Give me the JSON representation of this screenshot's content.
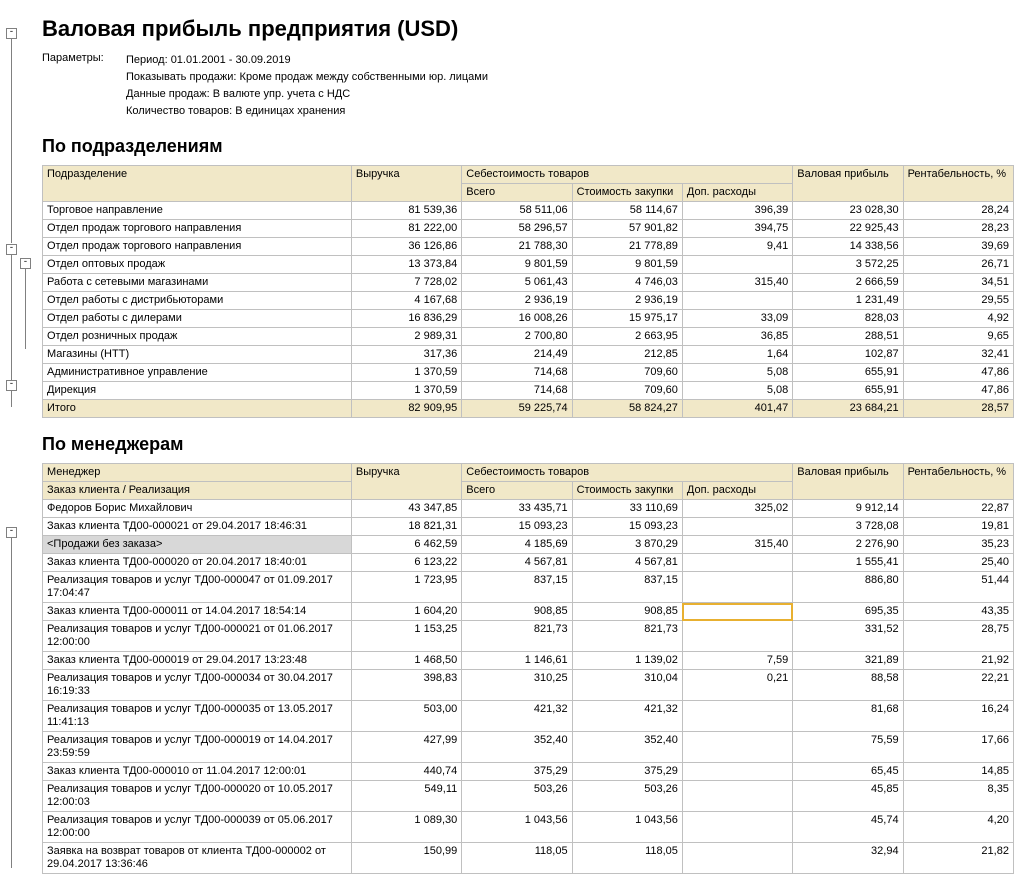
{
  "title": "Валовая прибыль предприятия (USD)",
  "params_label": "Параметры:",
  "params": [
    "Период: 01.01.2001 - 30.09.2019",
    "Показывать продажи: Кроме продаж между собственными юр. лицами",
    "Данные продаж: В валюте упр. учета с НДС",
    "Количество товаров: В единицах хранения"
  ],
  "section1_title": "По подразделениям",
  "section2_title": "По менеджерам",
  "headers": {
    "name1": "Подразделение",
    "name2a": "Менеджер",
    "name2b": "Заказ клиента / Реализация",
    "revenue": "Выручка",
    "cost_group": "Себестоимость товаров",
    "cost_total": "Всего",
    "cost_purchase": "Стоимость закупки",
    "cost_extra": "Доп. расходы",
    "gross": "Валовая прибыль",
    "profit": "Рентабельность, %"
  },
  "divisions": [
    {
      "lvl": 0,
      "name": "Торговое направление",
      "rev": "81 539,36",
      "ct": "58 511,06",
      "cp": "58 114,67",
      "ce": "396,39",
      "gp": "23 028,30",
      "pr": "28,24"
    },
    {
      "lvl": 1,
      "name": "Отдел продаж торгового направления",
      "rev": "81 222,00",
      "ct": "58 296,57",
      "cp": "57 901,82",
      "ce": "394,75",
      "gp": "22 925,43",
      "pr": "28,23"
    },
    {
      "lvl": 2,
      "name": "Отдел продаж торгового направления",
      "rev": "36 126,86",
      "ct": "21 788,30",
      "cp": "21 778,89",
      "ce": "9,41",
      "gp": "14 338,56",
      "pr": "39,69"
    },
    {
      "lvl": 2,
      "name": "Отдел оптовых продаж",
      "rev": "13 373,84",
      "ct": "9 801,59",
      "cp": "9 801,59",
      "ce": "",
      "gp": "3 572,25",
      "pr": "26,71"
    },
    {
      "lvl": 2,
      "name": "Работа с сетевыми магазинами",
      "rev": "7 728,02",
      "ct": "5 061,43",
      "cp": "4 746,03",
      "ce": "315,40",
      "gp": "2 666,59",
      "pr": "34,51"
    },
    {
      "lvl": 2,
      "name": "Отдел работы с дистрибьюторами",
      "rev": "4 167,68",
      "ct": "2 936,19",
      "cp": "2 936,19",
      "ce": "",
      "gp": "1 231,49",
      "pr": "29,55"
    },
    {
      "lvl": 2,
      "name": "Отдел работы с дилерами",
      "rev": "16 836,29",
      "ct": "16 008,26",
      "cp": "15 975,17",
      "ce": "33,09",
      "gp": "828,03",
      "pr": "4,92"
    },
    {
      "lvl": 2,
      "name": "Отдел розничных продаж",
      "rev": "2 989,31",
      "ct": "2 700,80",
      "cp": "2 663,95",
      "ce": "36,85",
      "gp": "288,51",
      "pr": "9,65"
    },
    {
      "lvl": 1,
      "name": "Магазины (НТТ)",
      "rev": "317,36",
      "ct": "214,49",
      "cp": "212,85",
      "ce": "1,64",
      "gp": "102,87",
      "pr": "32,41"
    },
    {
      "lvl": 0,
      "name": "Административное управление",
      "rev": "1 370,59",
      "ct": "714,68",
      "cp": "709,60",
      "ce": "5,08",
      "gp": "655,91",
      "pr": "47,86"
    },
    {
      "lvl": 1,
      "name": "Дирекция",
      "rev": "1 370,59",
      "ct": "714,68",
      "cp": "709,60",
      "ce": "5,08",
      "gp": "655,91",
      "pr": "47,86"
    }
  ],
  "divisions_total": {
    "name": "Итого",
    "rev": "82 909,95",
    "ct": "59 225,74",
    "cp": "58 824,27",
    "ce": "401,47",
    "gp": "23 684,21",
    "pr": "28,57"
  },
  "managers": [
    {
      "lvl": 0,
      "name": "Федоров Борис Михайлович",
      "rev": "43 347,85",
      "ct": "33 435,71",
      "cp": "33 110,69",
      "ce": "325,02",
      "gp": "9 912,14",
      "pr": "22,87"
    },
    {
      "lvl": 1,
      "name": "Заказ клиента ТД00-000021 от 29.04.2017 18:46:31",
      "rev": "18 821,31",
      "ct": "15 093,23",
      "cp": "15 093,23",
      "ce": "",
      "gp": "3 728,08",
      "pr": "19,81"
    },
    {
      "lvl": 1,
      "name": "<Продажи без заказа>",
      "rev": "6 462,59",
      "ct": "4 185,69",
      "cp": "3 870,29",
      "ce": "315,40",
      "gp": "2 276,90",
      "pr": "35,23",
      "hl": true
    },
    {
      "lvl": 1,
      "name": "Заказ клиента ТД00-000020 от 20.04.2017 18:40:01",
      "rev": "6 123,22",
      "ct": "4 567,81",
      "cp": "4 567,81",
      "ce": "",
      "gp": "1 555,41",
      "pr": "25,40"
    },
    {
      "lvl": 1,
      "name": "Реализация товаров и услуг ТД00-000047 от 01.09.2017 17:04:47",
      "rev": "1 723,95",
      "ct": "837,15",
      "cp": "837,15",
      "ce": "",
      "gp": "886,80",
      "pr": "51,44"
    },
    {
      "lvl": 1,
      "name": "Заказ клиента ТД00-000011 от 14.04.2017 18:54:14",
      "rev": "1 604,20",
      "ct": "908,85",
      "cp": "908,85",
      "ce": "",
      "gp": "695,35",
      "pr": "43,35",
      "sel": true
    },
    {
      "lvl": 1,
      "name": "Реализация товаров и услуг ТД00-000021 от 01.06.2017 12:00:00",
      "rev": "1 153,25",
      "ct": "821,73",
      "cp": "821,73",
      "ce": "",
      "gp": "331,52",
      "pr": "28,75"
    },
    {
      "lvl": 1,
      "name": "Заказ клиента ТД00-000019 от 29.04.2017 13:23:48",
      "rev": "1 468,50",
      "ct": "1 146,61",
      "cp": "1 139,02",
      "ce": "7,59",
      "gp": "321,89",
      "pr": "21,92"
    },
    {
      "lvl": 1,
      "name": "Реализация товаров и услуг ТД00-000034 от 30.04.2017 16:19:33",
      "rev": "398,83",
      "ct": "310,25",
      "cp": "310,04",
      "ce": "0,21",
      "gp": "88,58",
      "pr": "22,21"
    },
    {
      "lvl": 1,
      "name": "Реализация товаров и услуг ТД00-000035 от 13.05.2017 11:41:13",
      "rev": "503,00",
      "ct": "421,32",
      "cp": "421,32",
      "ce": "",
      "gp": "81,68",
      "pr": "16,24"
    },
    {
      "lvl": 1,
      "name": "Реализация товаров и услуг ТД00-000019 от 14.04.2017 23:59:59",
      "rev": "427,99",
      "ct": "352,40",
      "cp": "352,40",
      "ce": "",
      "gp": "75,59",
      "pr": "17,66"
    },
    {
      "lvl": 1,
      "name": "Заказ клиента ТД00-000010 от 11.04.2017 12:00:01",
      "rev": "440,74",
      "ct": "375,29",
      "cp": "375,29",
      "ce": "",
      "gp": "65,45",
      "pr": "14,85"
    },
    {
      "lvl": 1,
      "name": "Реализация товаров и услуг ТД00-000020 от 10.05.2017 12:00:03",
      "rev": "549,11",
      "ct": "503,26",
      "cp": "503,26",
      "ce": "",
      "gp": "45,85",
      "pr": "8,35"
    },
    {
      "lvl": 1,
      "name": "Реализация товаров и услуг ТД00-000039 от 05.06.2017 12:00:00",
      "rev": "1 089,30",
      "ct": "1 043,56",
      "cp": "1 043,56",
      "ce": "",
      "gp": "45,74",
      "pr": "4,20"
    },
    {
      "lvl": 1,
      "name": "Заявка на возврат товаров от клиента ТД00-000002 от 29.04.2017 13:36:46",
      "rev": "150,99",
      "ct": "118,05",
      "cp": "118,05",
      "ce": "",
      "gp": "32,94",
      "pr": "21,82"
    }
  ]
}
